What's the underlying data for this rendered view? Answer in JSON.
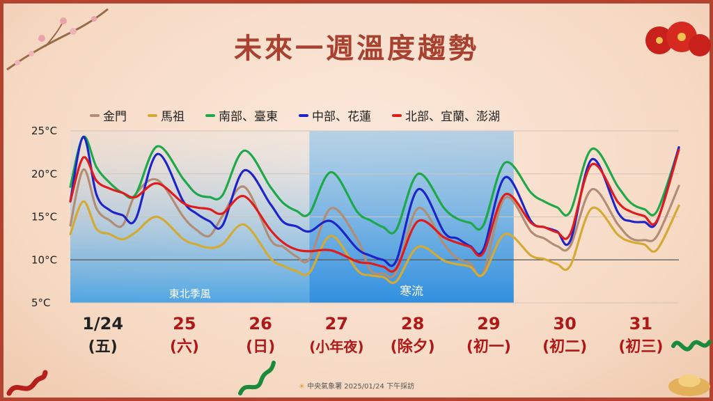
{
  "title": "未來一週溫度趨勢",
  "footer": "中央氣象署  2025/01/24 下午採訪",
  "colors": {
    "金門": "#b28d75",
    "馬祖": "#d4aa35",
    "南部、臺東": "#1fa84a",
    "中部、花蓮": "#1d25c9",
    "北部、宜蘭、澎湖": "#e01b1b",
    "date_black": "#222222",
    "date_red": "#b01818"
  },
  "chart_data": {
    "type": "line",
    "ylim": [
      5,
      25
    ],
    "y_ticks": [
      "25°C",
      "20°C",
      "15°C",
      "10°C",
      "5°C"
    ],
    "y_tick_values": [
      25,
      20,
      15,
      10,
      5
    ],
    "x_positions": [
      0,
      0.15,
      0.3,
      0.45,
      0.6,
      0.75,
      1,
      1.3,
      1.45,
      1.6,
      1.75,
      2,
      2.3,
      2.45,
      2.6,
      2.75,
      3,
      3.3,
      3.45,
      3.6,
      3.75,
      4,
      4.3,
      4.45,
      4.6,
      4.75,
      5,
      5.3,
      5.45,
      5.6,
      5.75,
      6,
      6.3,
      6.45,
      6.6,
      6.75,
      7
    ],
    "x_range": [
      0,
      7
    ],
    "date_labels": [
      {
        "date": "1/24",
        "day": "(五)",
        "red": false
      },
      {
        "date": "25",
        "day": "(六)",
        "red": true
      },
      {
        "date": "26",
        "day": "(日)",
        "red": true
      },
      {
        "date": "27",
        "day": "(小年夜)",
        "red": true
      },
      {
        "date": "28",
        "day": "(除夕)",
        "red": true
      },
      {
        "date": "29",
        "day": "(初一)",
        "red": true
      },
      {
        "date": "30",
        "day": "(初二)",
        "red": true
      },
      {
        "date": "31",
        "day": "(初三)",
        "red": true
      }
    ],
    "regions": [
      {
        "label": "東北季風",
        "from": 0,
        "to": 2.75
      },
      {
        "label": "寒流",
        "from": 2.75,
        "to": 5.1
      }
    ],
    "series": [
      {
        "name": "金門",
        "values": [
          14,
          20.5,
          16,
          14.6,
          14,
          17.6,
          19.3,
          15,
          13.5,
          12.8,
          15.1,
          18.5,
          12.4,
          11.5,
          10.4,
          10.1,
          16,
          12.4,
          8.8,
          8.4,
          8.6,
          16,
          11.8,
          10.2,
          9.6,
          8.5,
          17.2,
          13.3,
          12.5,
          11.6,
          11.6,
          18.2,
          14.1,
          12.5,
          12.3,
          12.8,
          18.6
        ]
      },
      {
        "name": "馬祖",
        "values": [
          13,
          16.8,
          13.6,
          13,
          12.4,
          13.2,
          15,
          12.4,
          11.8,
          11.4,
          11.8,
          14.1,
          10.2,
          9.3,
          8.7,
          8.5,
          12.8,
          8.8,
          8.2,
          8,
          7.5,
          11.5,
          9.9,
          9.5,
          9.2,
          8.3,
          13,
          10.5,
          10.1,
          9.5,
          9.3,
          16,
          12.9,
          12.1,
          11.8,
          11.2,
          16.3
        ]
      },
      {
        "name": "南部、臺東",
        "values": [
          18.5,
          24.3,
          20.8,
          19,
          17.8,
          17.6,
          23.2,
          19.4,
          17.7,
          17.3,
          17.5,
          22.7,
          18.5,
          16.6,
          15.7,
          15.4,
          20.2,
          15.6,
          14.6,
          13.8,
          13.5,
          20,
          16,
          14.8,
          14.3,
          14,
          21.3,
          17.8,
          16.8,
          16.1,
          15.6,
          22.9,
          18.5,
          16.6,
          15.9,
          15.7,
          23
        ]
      },
      {
        "name": "中部、花蓮",
        "values": [
          16.8,
          24.3,
          17.6,
          15.8,
          15.2,
          14.7,
          22.3,
          16.8,
          15.4,
          14.5,
          14,
          20.4,
          16.5,
          14.4,
          13.9,
          13.3,
          14.5,
          11.3,
          10.5,
          10,
          9.9,
          18.2,
          13.2,
          12.5,
          11.6,
          11.2,
          19.6,
          14.5,
          13.8,
          13.3,
          12.2,
          21.7,
          15.5,
          14.5,
          14.4,
          14.5,
          23.1
        ]
      },
      {
        "name": "北部、宜蘭、澎湖",
        "values": [
          16.8,
          21.9,
          19.2,
          18.3,
          17.8,
          17.3,
          18.9,
          16.6,
          16.1,
          15.9,
          15.4,
          17.4,
          13.5,
          12,
          11.2,
          11,
          11.1,
          9.8,
          9.6,
          9.2,
          9,
          14.5,
          12.6,
          12,
          11.5,
          10.8,
          17.6,
          14.3,
          13.8,
          13.2,
          13,
          21.1,
          16.7,
          15.6,
          15.1,
          14.6,
          22.8
        ]
      }
    ]
  }
}
